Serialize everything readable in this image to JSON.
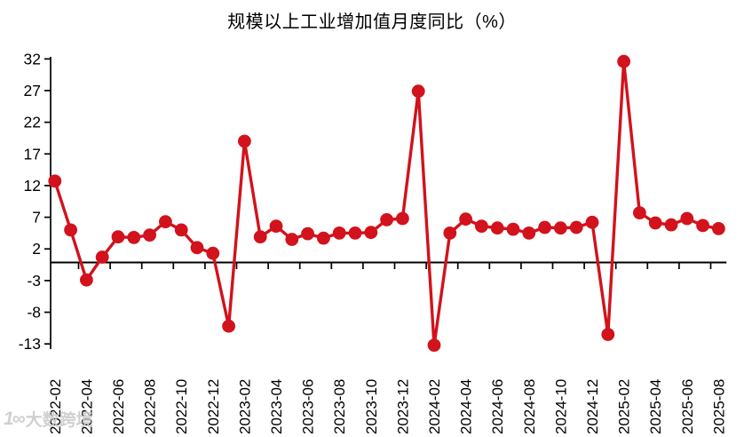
{
  "page": {
    "background": "#ffffff"
  },
  "chart_data": {
    "type": "line",
    "title": "规模以上工业增加值月度同比（%）",
    "series_name": "规模以上工业增加值月度同比",
    "x": [
      "2022-02",
      "2022-03",
      "2022-04",
      "2022-05",
      "2022-06",
      "2022-07",
      "2022-08",
      "2022-09",
      "2022-10",
      "2022-11",
      "2022-12",
      "2023-01",
      "2023-02",
      "2023-03",
      "2023-04",
      "2023-05",
      "2023-06",
      "2023-07",
      "2023-08",
      "2023-09",
      "2023-10",
      "2023-11",
      "2023-12",
      "2024-01",
      "2024-02",
      "2024-03",
      "2024-04",
      "2024-05",
      "2024-06",
      "2024-07",
      "2024-08",
      "2024-09",
      "2024-10",
      "2024-11",
      "2024-12",
      "2025-01",
      "2025-02",
      "2025-03",
      "2025-04",
      "2025-05",
      "2025-06",
      "2025-07",
      "2025-08"
    ],
    "values": [
      12.7,
      5.0,
      -2.9,
      0.7,
      3.9,
      3.8,
      4.2,
      6.3,
      5.0,
      2.2,
      1.3,
      -10.2,
      19.0,
      3.9,
      5.6,
      3.5,
      4.4,
      3.7,
      4.5,
      4.5,
      4.6,
      6.6,
      6.8,
      26.9,
      -13.2,
      4.5,
      6.7,
      5.6,
      5.3,
      5.1,
      4.5,
      5.4,
      5.3,
      5.4,
      6.2,
      -11.5,
      31.6,
      7.7,
      6.1,
      5.8,
      6.8,
      5.7,
      5.2
    ],
    "x_tick_labels": [
      "2022-02",
      "2022-04",
      "2022-06",
      "2022-08",
      "2022-10",
      "2022-12",
      "2023-02",
      "2023-04",
      "2023-06",
      "2023-08",
      "2023-10",
      "2023-12",
      "2024-02",
      "2024-04",
      "2024-06",
      "2024-08",
      "2024-10",
      "2024-12",
      "2025-02",
      "2025-04",
      "2025-06",
      "2025-08"
    ],
    "x_tick_interval": 2,
    "y_ticks": [
      32,
      27,
      22,
      17,
      12,
      7,
      2,
      -3,
      -8,
      -13
    ],
    "ylim": [
      -13.9,
      32.3
    ],
    "grid": false,
    "legend": "none",
    "line_color": "#d2121c",
    "marker": "filled-circle",
    "axis_color": "#000000",
    "xaxis_position": "at-zero",
    "x_label_rotation": 90
  },
  "watermark": {
    "logo": "1∞",
    "text": "大数跨境",
    "color": "#cbcbcb"
  }
}
